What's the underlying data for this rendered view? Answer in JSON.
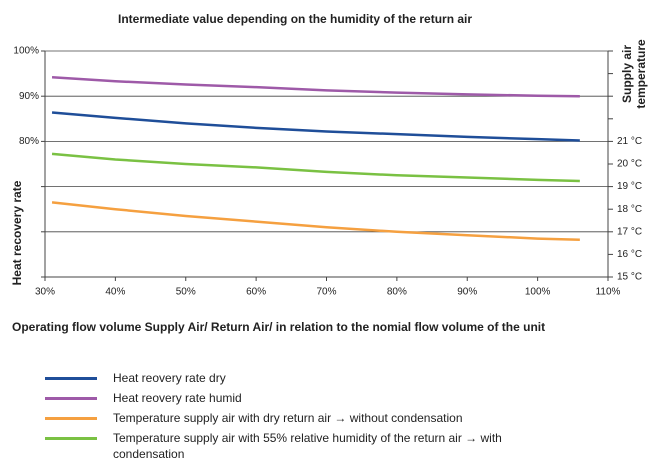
{
  "chart_data": {
    "type": "line",
    "title": "Intermediate value depending on the humidity of the return air",
    "xlabel": "Operating flow volume Supply Air/ Return Air/ in relation to the nomial flow volume of the unit",
    "ylabel": "Heat recovery rate",
    "y2label": "Supply air temperature",
    "x": [
      31,
      40,
      50,
      60,
      70,
      80,
      90,
      100,
      106
    ],
    "xlim": [
      30,
      110
    ],
    "xticks": [
      {
        "value": 30,
        "label": "30%"
      },
      {
        "value": 40,
        "label": "40%"
      },
      {
        "value": 50,
        "label": "50%"
      },
      {
        "value": 60,
        "label": "60%"
      },
      {
        "value": 70,
        "label": "70%"
      },
      {
        "value": 80,
        "label": "80%"
      },
      {
        "value": 90,
        "label": "90%"
      },
      {
        "value": 100,
        "label": "100%"
      },
      {
        "value": 110,
        "label": "110%"
      }
    ],
    "ylim": [
      50,
      100
    ],
    "yticks": [
      {
        "value": 50,
        "label": null
      },
      {
        "value": 60,
        "label": null
      },
      {
        "value": 70,
        "label": null
      },
      {
        "value": 80,
        "label": "80%"
      },
      {
        "value": 90,
        "label": "90%"
      },
      {
        "value": 100,
        "label": "100%"
      }
    ],
    "y2lim": [
      15,
      25
    ],
    "y2ticks": [
      {
        "value": 15,
        "label": "15 °C"
      },
      {
        "value": 16,
        "label": "16 °C"
      },
      {
        "value": 17,
        "label": "17 °C"
      },
      {
        "value": 18,
        "label": "18 °C"
      },
      {
        "value": 19,
        "label": "19 °C"
      },
      {
        "value": 20,
        "label": "20 °C"
      },
      {
        "value": 21,
        "label": "21 °C"
      },
      {
        "value": 22,
        "label": null
      },
      {
        "value": 23,
        "label": null
      },
      {
        "value": 24,
        "label": null
      },
      {
        "value": 25,
        "label": null
      }
    ],
    "grid": true,
    "series": [
      {
        "name": "Heat reovery rate dry",
        "color": "#1f4e99",
        "values": [
          86.4,
          85.2,
          84.0,
          83.0,
          82.2,
          81.6,
          81.0,
          80.5,
          80.2
        ]
      },
      {
        "name": "Heat reovery rate humid",
        "color": "#9e5aa8",
        "values": [
          94.2,
          93.3,
          92.6,
          92.0,
          91.3,
          90.8,
          90.4,
          90.1,
          90.0
        ]
      },
      {
        "name": "Temperature supply air with dry return air → without condensation",
        "color": "#f5a040",
        "axis": "y2",
        "values": [
          18.3,
          18.0,
          17.7,
          17.45,
          17.2,
          17.0,
          16.85,
          16.7,
          16.65
        ]
      },
      {
        "name": "Temperature supply air with 55% relative humidity of the return air → with condensation",
        "color": "#7ac143",
        "axis": "y2",
        "values": [
          20.45,
          20.2,
          20.0,
          19.85,
          19.65,
          19.5,
          19.4,
          19.3,
          19.25
        ]
      }
    ]
  }
}
